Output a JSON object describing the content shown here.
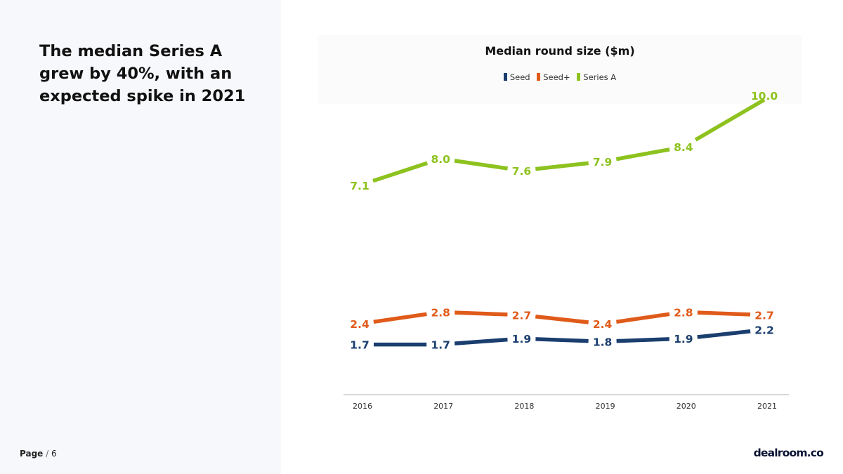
{
  "headline": {
    "lines": [
      "The median Series A",
      "grew by 40%, with an",
      "expected spike in 2021"
    ]
  },
  "footer": {
    "page_label": "Page",
    "page_sep": "/",
    "page_number": "6",
    "logo": "dealroom.co"
  },
  "colors": {
    "seed": "#1a3e6e",
    "seed_plus": "#e05a1a",
    "series_a": "#8dc21f"
  },
  "chart_data": {
    "type": "line",
    "title": "Median round size ($m)",
    "xlabel": "",
    "ylabel": "",
    "x": [
      "2016",
      "2017",
      "2018",
      "2019",
      "2020",
      "2021"
    ],
    "ylim": [
      0,
      10
    ],
    "grid": false,
    "legend_position": "top-center",
    "series": [
      {
        "name": "Seed",
        "color": "#1a3e6e",
        "values": [
          1.7,
          1.7,
          1.9,
          1.8,
          1.9,
          2.2
        ]
      },
      {
        "name": "Seed+",
        "color": "#e05a1a",
        "values": [
          2.4,
          2.8,
          2.7,
          2.4,
          2.8,
          2.7
        ]
      },
      {
        "name": "Series A",
        "color": "#8dc21f",
        "values": [
          7.1,
          8.0,
          7.6,
          7.9,
          8.4,
          10.0
        ]
      }
    ]
  }
}
